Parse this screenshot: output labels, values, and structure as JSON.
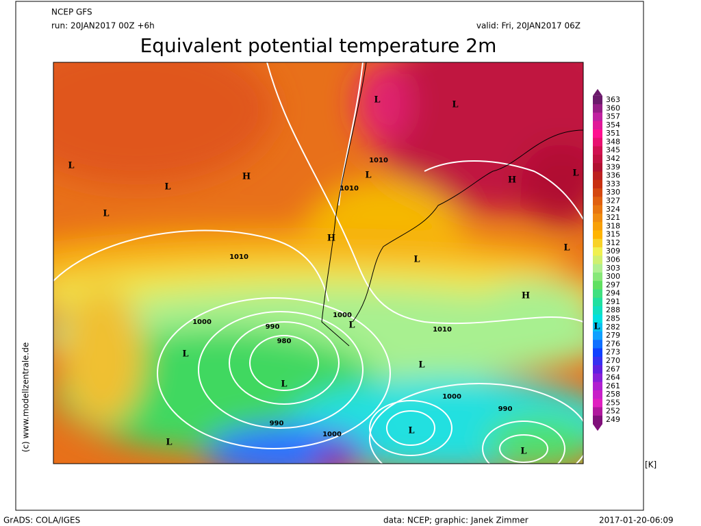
{
  "header": {
    "model": "NCEP GFS",
    "run": "run: 20JAN2017 00Z +6h",
    "valid": "valid: Fri, 20JAN2017 06Z",
    "title": "Equivalent potential temperature 2m"
  },
  "copyright": "(c) www.modellzentrale.de",
  "colorbar": {
    "unit": "[K]",
    "ticks": [
      363,
      360,
      357,
      354,
      351,
      348,
      345,
      342,
      339,
      336,
      333,
      330,
      327,
      324,
      321,
      318,
      315,
      312,
      309,
      306,
      303,
      300,
      297,
      294,
      291,
      288,
      285,
      282,
      279,
      276,
      273,
      270,
      267,
      264,
      261,
      258,
      255,
      252,
      249
    ]
  },
  "map_labels": [
    "L",
    "L",
    "L",
    "H",
    "L",
    "L",
    "1010",
    "L",
    "1010",
    "H",
    "L",
    "H",
    "L",
    "1010",
    "L",
    "H",
    "L",
    "1000",
    "990",
    "1000",
    "L",
    "980",
    "1010",
    "L",
    "L",
    "L",
    "1000",
    "990",
    "990",
    "1000",
    "L",
    "L",
    "L"
  ],
  "footer": {
    "software": "GrADS: COLA/IGES",
    "credits": "data: NCEP; graphic: Janek Zimmer",
    "timestamp": "2017-01-20-06:09"
  }
}
